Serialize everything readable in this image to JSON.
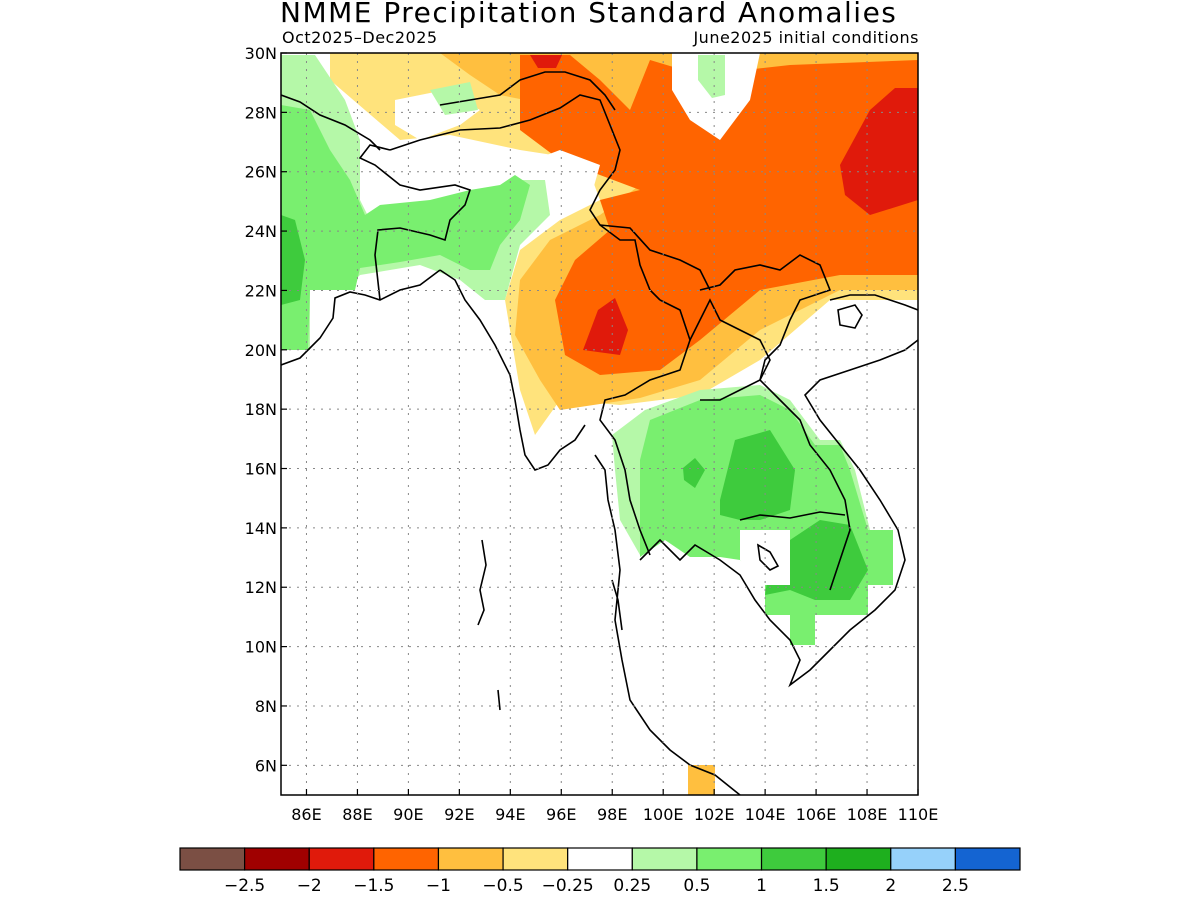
{
  "title": "NMME Precipitation Standard Anomalies",
  "period": "Oct2025–Dec2025",
  "initial_conditions": "June2025 initial conditions",
  "map": {
    "lon_range": [
      85,
      110
    ],
    "lat_range": [
      5,
      30
    ],
    "lat_ticks": [
      "30N",
      "28N",
      "26N",
      "24N",
      "22N",
      "20N",
      "18N",
      "16N",
      "14N",
      "12N",
      "10N",
      "8N",
      "6N"
    ],
    "lon_ticks": [
      "86E",
      "88E",
      "90E",
      "92E",
      "94E",
      "96E",
      "98E",
      "100E",
      "102E",
      "104E",
      "106E",
      "108E",
      "110E"
    ],
    "gridlines": "dotted"
  },
  "colorbar": {
    "colors": [
      "#7b4f44",
      "#a00000",
      "#e01a0b",
      "#ff6400",
      "#ffbf3f",
      "#ffe37c",
      "#ffffff",
      "#b5f8a8",
      "#79ef6f",
      "#3ecb3d",
      "#1eaf1e",
      "#96d1fa",
      "#1464d2"
    ],
    "labels": [
      "−2.5",
      "−2",
      "−1.5",
      "−1",
      "−0.5",
      "−0.25",
      "0.25",
      "0.5",
      "1",
      "1.5",
      "2",
      "2.5"
    ]
  }
}
